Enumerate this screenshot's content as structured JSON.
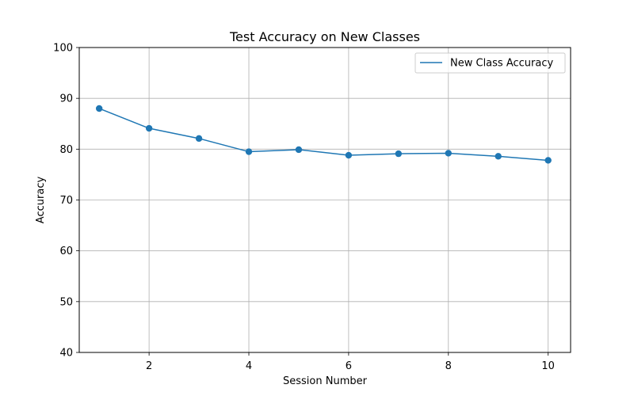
{
  "chart_data": {
    "type": "line",
    "title": "Test Accuracy on New Classes",
    "xlabel": "Session Number",
    "ylabel": "Accuracy",
    "xlim": [
      0.6,
      10.45
    ],
    "ylim": [
      40,
      100
    ],
    "xticks": [
      2,
      4,
      6,
      8,
      10
    ],
    "yticks": [
      40,
      50,
      60,
      70,
      80,
      90,
      100
    ],
    "grid": true,
    "legend": "top-right",
    "series": [
      {
        "name": "New Class Accuracy",
        "color": "#1f77b4",
        "marker": "circle",
        "x": [
          1,
          2,
          3,
          4,
          5,
          6,
          7,
          8,
          9,
          10
        ],
        "y": [
          88.0,
          84.1,
          82.1,
          79.5,
          79.9,
          78.8,
          79.1,
          79.2,
          78.6,
          77.8
        ]
      }
    ]
  }
}
